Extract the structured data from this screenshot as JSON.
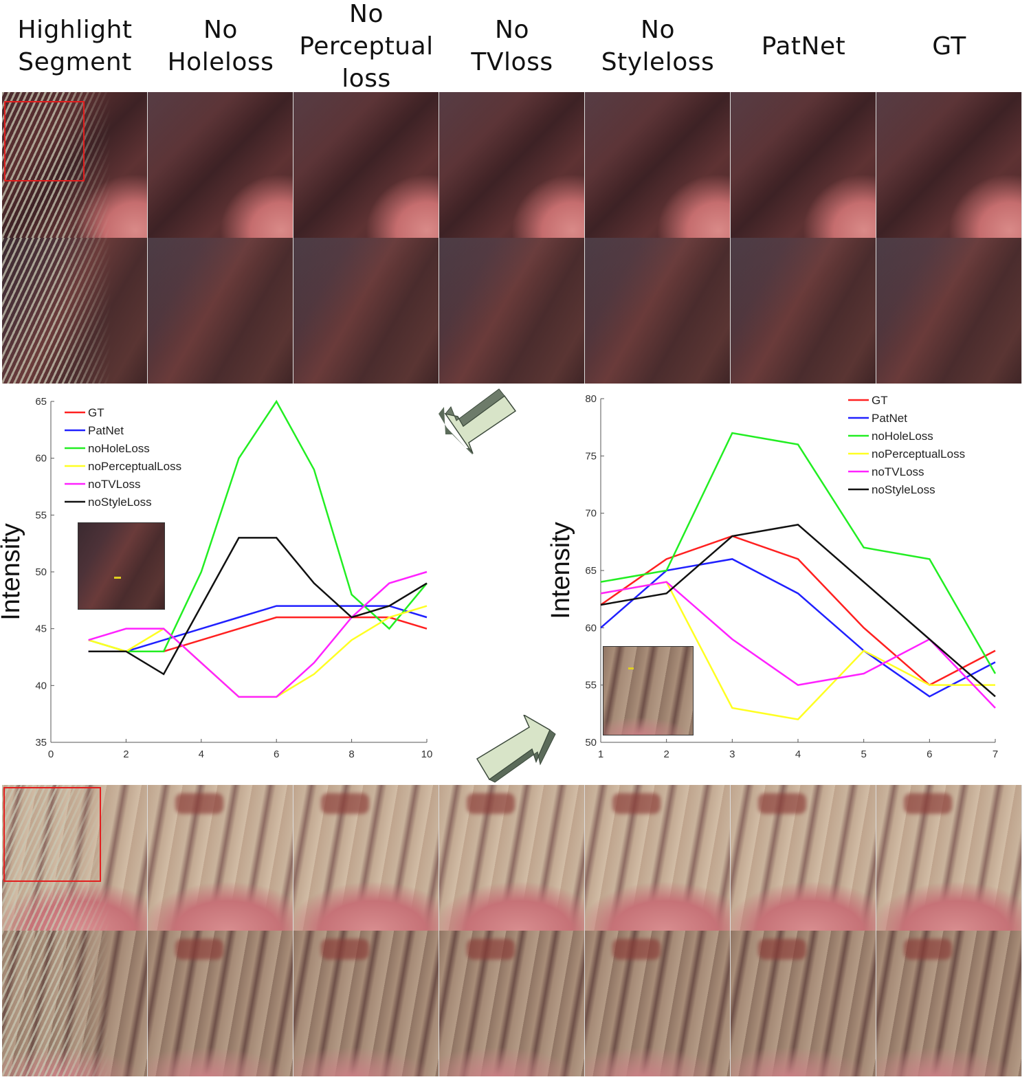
{
  "column_headers": [
    "Highlight\nSegment",
    "No\nHoleloss",
    "No\nPerceptual\nloss",
    "No\nTVloss",
    "No\nStyleloss",
    "PatNet",
    "GT"
  ],
  "colors": {
    "GT": "#ff2020",
    "PatNet": "#2020ff",
    "noHoleLoss": "#22ee22",
    "noPerceptualLoss": "#ffff22",
    "noTVLoss": "#ff22ff",
    "noStyleLoss": "#111111",
    "highlight_box": "#e21e1e",
    "arrow_fill": "#d8e4c8",
    "arrow_dark": "#5b6b5a"
  },
  "chart_data": [
    {
      "type": "line",
      "title": "",
      "xlabel": "",
      "ylabel": "Intensity",
      "xlim": [
        0,
        10
      ],
      "ylim": [
        35,
        65
      ],
      "xticks": [
        0,
        2,
        4,
        6,
        8,
        10
      ],
      "yticks": [
        35,
        40,
        45,
        50,
        55,
        60,
        65
      ],
      "legend_position": "top-left",
      "grid": false,
      "x": [
        1,
        2,
        3,
        4,
        5,
        6,
        7,
        8,
        9,
        10
      ],
      "series": [
        {
          "name": "GT",
          "values": [
            43,
            43,
            43,
            44,
            45,
            46,
            46,
            46,
            46,
            45
          ]
        },
        {
          "name": "PatNet",
          "values": [
            43,
            43,
            44,
            45,
            46,
            47,
            47,
            47,
            47,
            46
          ]
        },
        {
          "name": "noHoleLoss",
          "values": [
            44,
            43,
            43,
            50,
            60,
            65,
            59,
            48,
            45,
            49
          ]
        },
        {
          "name": "noPerceptualLoss",
          "values": [
            44,
            43,
            45,
            42,
            39,
            39,
            41,
            44,
            46,
            47
          ]
        },
        {
          "name": "noTVLoss",
          "values": [
            44,
            45,
            45,
            42,
            39,
            39,
            42,
            46,
            49,
            50
          ]
        },
        {
          "name": "noStyleLoss",
          "values": [
            43,
            43,
            41,
            47,
            53,
            53,
            49,
            46,
            47,
            49
          ]
        }
      ]
    },
    {
      "type": "line",
      "title": "",
      "xlabel": "",
      "ylabel": "Intensity",
      "xlim": [
        1,
        7
      ],
      "ylim": [
        50,
        80
      ],
      "xticks": [
        1,
        2,
        3,
        4,
        5,
        6,
        7
      ],
      "yticks": [
        50,
        55,
        60,
        65,
        70,
        75,
        80
      ],
      "legend_position": "top-right",
      "grid": false,
      "x": [
        1,
        2,
        3,
        4,
        5,
        6,
        7
      ],
      "series": [
        {
          "name": "GT",
          "values": [
            62,
            66,
            68,
            66,
            60,
            55,
            58
          ]
        },
        {
          "name": "PatNet",
          "values": [
            60,
            65,
            66,
            63,
            58,
            54,
            57
          ]
        },
        {
          "name": "noHoleLoss",
          "values": [
            64,
            65,
            77,
            76,
            67,
            66,
            56
          ]
        },
        {
          "name": "noPerceptualLoss",
          "values": [
            63,
            64,
            53,
            52,
            58,
            55,
            55
          ]
        },
        {
          "name": "noTVLoss",
          "values": [
            63,
            64,
            59,
            55,
            56,
            59,
            53
          ]
        },
        {
          "name": "noStyleLoss",
          "values": [
            62,
            63,
            68,
            69,
            64,
            59,
            54
          ]
        }
      ]
    }
  ]
}
